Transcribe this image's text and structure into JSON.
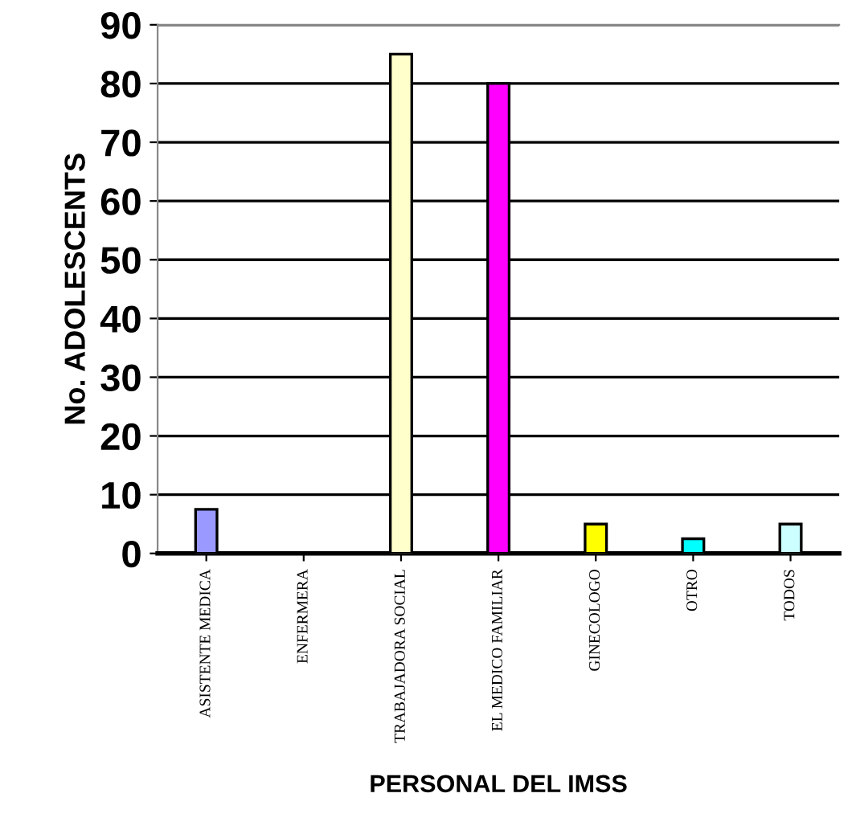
{
  "chart_data": {
    "type": "bar",
    "xlabel": "PERSONAL DEL IMSS",
    "ylabel": "No. ADOLESCENTS",
    "categories": [
      "ASISTENTE MEDICA",
      "ENFERMERA",
      "TRABAJADORA SOCIAL",
      "EL MEDICO FAMILIAR",
      "GINECOLOGO",
      "OTRO",
      "TODOS"
    ],
    "values": [
      7.5,
      0,
      85,
      80,
      5,
      2.5,
      5
    ],
    "colors": [
      "#9999ff",
      "#000000",
      "#ffffcc",
      "#ff00ff",
      "#ffff00",
      "#00ffff",
      "#ccffff"
    ],
    "ylim": [
      0,
      90
    ],
    "yticks": [
      0,
      10,
      20,
      30,
      40,
      50,
      60,
      70,
      80,
      90
    ],
    "grid": "y",
    "legend": false
  }
}
